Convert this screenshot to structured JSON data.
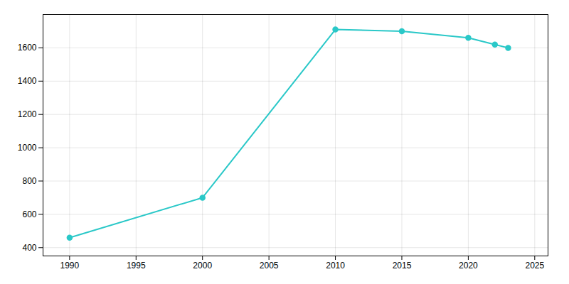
{
  "chart_data": {
    "type": "line",
    "x": [
      1990,
      2000,
      2010,
      2015,
      2020,
      2022,
      2023
    ],
    "values": [
      460,
      700,
      1710,
      1700,
      1660,
      1620,
      1600
    ],
    "color": "#2ac8c8",
    "marker": "o",
    "xlim": [
      1988,
      2026
    ],
    "ylim": [
      350,
      1800
    ],
    "xticks": [
      1990,
      1995,
      2000,
      2005,
      2010,
      2015,
      2020,
      2025
    ],
    "yticks": [
      400,
      600,
      800,
      1000,
      1200,
      1400,
      1600
    ],
    "grid": true
  }
}
